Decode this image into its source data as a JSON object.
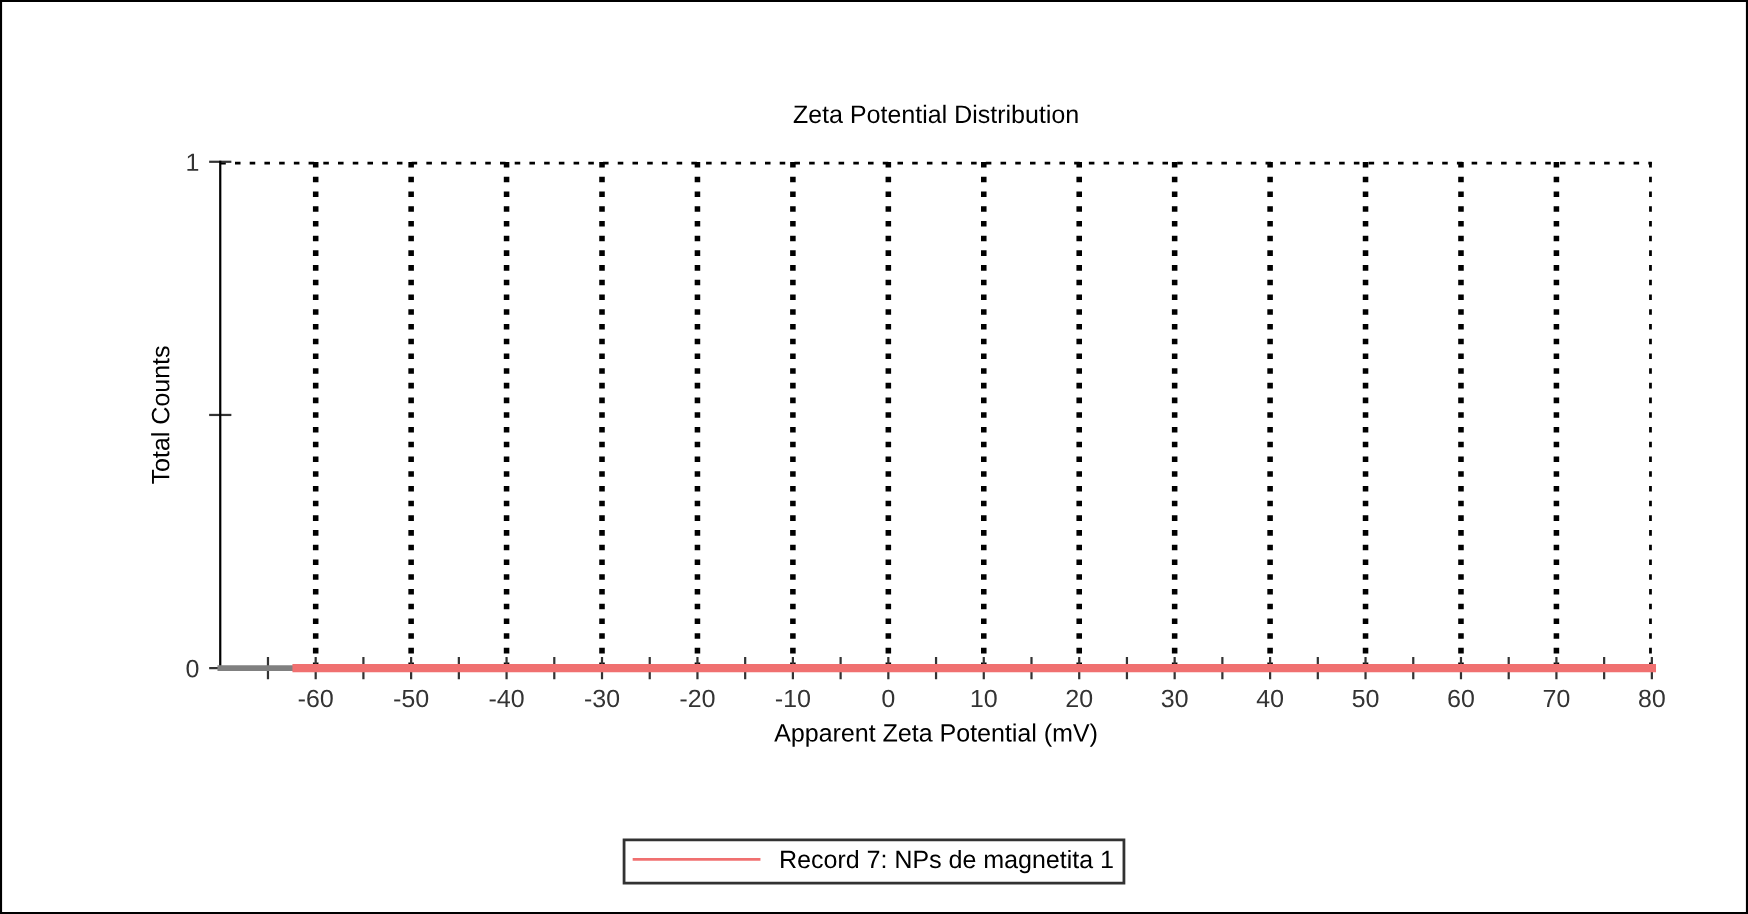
{
  "chart_data": {
    "type": "line",
    "title": "Zeta Potential Distribution",
    "xlabel": "Apparent Zeta Potential (mV)",
    "ylabel": "Total Counts",
    "series": [
      {
        "name": "Record 7: NPs de magnetita 1",
        "color": "#f07070",
        "x": [
          -62,
          80
        ],
        "values": [
          0,
          0
        ]
      }
    ],
    "xlim": [
      -70,
      80
    ],
    "xticks": [
      {
        "value": -65,
        "label": null
      },
      -60,
      {
        "value": -55,
        "label": null
      },
      -50,
      {
        "value": -45,
        "label": null
      },
      -40,
      {
        "value": -35,
        "label": null
      },
      -30,
      {
        "value": -25,
        "label": null
      },
      -20,
      {
        "value": -15,
        "label": null
      },
      -10,
      {
        "value": -5,
        "label": null
      },
      0,
      {
        "value": 5,
        "label": null
      },
      10,
      {
        "value": 15,
        "label": null
      },
      20,
      {
        "value": 25,
        "label": null
      },
      30,
      {
        "value": 35,
        "label": null
      },
      40,
      {
        "value": 45,
        "label": null
      },
      50,
      {
        "value": 55,
        "label": null
      },
      60,
      {
        "value": 65,
        "label": null
      },
      70,
      {
        "value": 75,
        "label": null
      },
      80
    ],
    "ylim": [
      0,
      1
    ],
    "yticks": [
      0,
      {
        "value": 0.5,
        "label": null
      },
      1
    ],
    "grid": true,
    "legend": "bottom",
    "marker": "none",
    "line_style": "solid"
  }
}
